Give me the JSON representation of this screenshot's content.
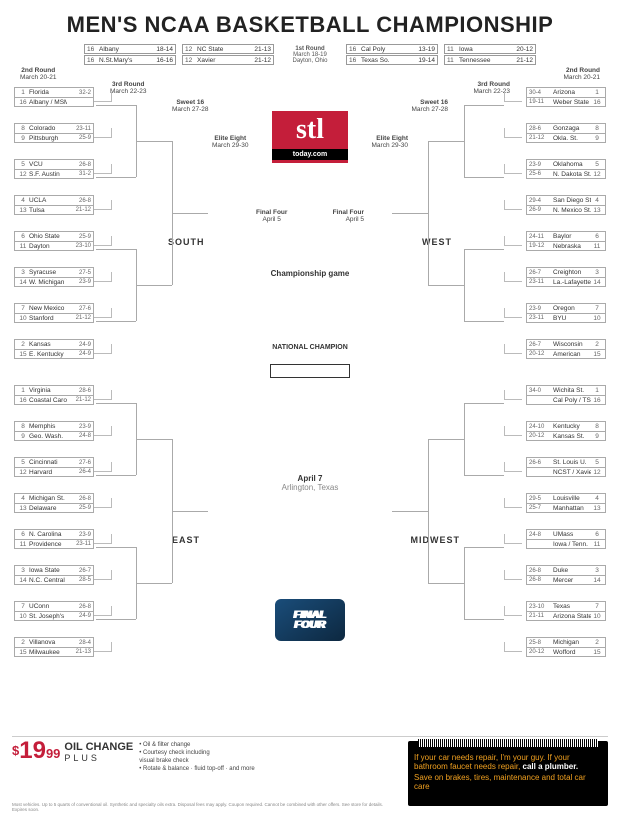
{
  "title": "MEN'S NCAA BASKETBALL CHAMPIONSHIP",
  "colors": {
    "accent": "#C41E3A",
    "line": "#aaa",
    "text": "#333"
  },
  "play_in": {
    "label": "1st Round",
    "dates": "March 18-19",
    "city": "Dayton, Ohio",
    "groups": [
      [
        [
          "16",
          "Albany",
          "18-14"
        ],
        [
          "16",
          "N.St.Mary's",
          "16-16"
        ]
      ],
      [
        [
          "12",
          "NC State",
          "21-13"
        ],
        [
          "12",
          "Xavier",
          "21-12"
        ]
      ],
      [
        [
          "16",
          "Cal Poly",
          "13-19"
        ],
        [
          "16",
          "Texas So.",
          "19-14"
        ]
      ],
      [
        [
          "11",
          "Iowa",
          "20-12"
        ],
        [
          "11",
          "Tennessee",
          "21-12"
        ]
      ]
    ]
  },
  "rounds": {
    "r2": {
      "label": "2nd Round",
      "dates": "March 20-21"
    },
    "r3": {
      "label": "3rd Round",
      "dates": "March 22-23"
    },
    "s16": {
      "label": "Sweet 16",
      "dates": "March 27-28"
    },
    "e8": {
      "label": "Elite Eight",
      "dates": "March 29-30"
    },
    "ff": {
      "label": "Final Four",
      "dates": "April 5"
    }
  },
  "center": {
    "logo_top": "stl",
    "logo_bottom": "today.com",
    "championship": "Championship game",
    "national": "NATIONAL CHAMPION",
    "date": "April 7",
    "city": "Arlington, Texas",
    "ff_logo": "FINAL FOUR"
  },
  "regions": {
    "south": {
      "label": "SOUTH",
      "pos": "tl",
      "teams": [
        [
          "1",
          "Florida",
          "32-2"
        ],
        [
          "16",
          "Albany / MSM",
          ""
        ],
        [
          "8",
          "Colorado",
          "23-11"
        ],
        [
          "9",
          "Pittsburgh",
          "25-9"
        ],
        [
          "5",
          "VCU",
          "26-8"
        ],
        [
          "12",
          "S.F. Austin",
          "31-2"
        ],
        [
          "4",
          "UCLA",
          "26-8"
        ],
        [
          "13",
          "Tulsa",
          "21-12"
        ],
        [
          "6",
          "Ohio State",
          "25-9"
        ],
        [
          "11",
          "Dayton",
          "23-10"
        ],
        [
          "3",
          "Syracuse",
          "27-5"
        ],
        [
          "14",
          "W. Michigan",
          "23-9"
        ],
        [
          "7",
          "New Mexico",
          "27-6"
        ],
        [
          "10",
          "Stanford",
          "21-12"
        ],
        [
          "2",
          "Kansas",
          "24-9"
        ],
        [
          "15",
          "E. Kentucky",
          "24-9"
        ]
      ]
    },
    "east": {
      "label": "EAST",
      "pos": "bl",
      "teams": [
        [
          "1",
          "Virginia",
          "28-6"
        ],
        [
          "16",
          "Coastal Caro.",
          "21-12"
        ],
        [
          "8",
          "Memphis",
          "23-9"
        ],
        [
          "9",
          "Geo. Wash.",
          "24-8"
        ],
        [
          "5",
          "Cincinnati",
          "27-6"
        ],
        [
          "12",
          "Harvard",
          "26-4"
        ],
        [
          "4",
          "Michigan St.",
          "26-8"
        ],
        [
          "13",
          "Delaware",
          "25-9"
        ],
        [
          "6",
          "N. Carolina",
          "23-9"
        ],
        [
          "11",
          "Providence",
          "23-11"
        ],
        [
          "3",
          "Iowa State",
          "26-7"
        ],
        [
          "14",
          "N.C. Central",
          "28-5"
        ],
        [
          "7",
          "UConn",
          "26-8"
        ],
        [
          "10",
          "St. Joseph's",
          "24-9"
        ],
        [
          "2",
          "Villanova",
          "28-4"
        ],
        [
          "15",
          "Milwaukee",
          "21-13"
        ]
      ]
    },
    "west": {
      "label": "WEST",
      "pos": "tr",
      "teams": [
        [
          "1",
          "Arizona",
          "30-4"
        ],
        [
          "16",
          "Weber State",
          "19-11"
        ],
        [
          "8",
          "Gonzaga",
          "28-6"
        ],
        [
          "9",
          "Okla. St.",
          "21-12"
        ],
        [
          "5",
          "Oklahoma",
          "23-9"
        ],
        [
          "12",
          "N. Dakota St.",
          "25-6"
        ],
        [
          "4",
          "San Diego St.",
          "29-4"
        ],
        [
          "13",
          "N. Mexico St.",
          "26-9"
        ],
        [
          "6",
          "Baylor",
          "24-11"
        ],
        [
          "11",
          "Nebraska",
          "19-12"
        ],
        [
          "3",
          "Creighton",
          "26-7"
        ],
        [
          "14",
          "La.-Lafayette",
          "23-11"
        ],
        [
          "7",
          "Oregon",
          "23-9"
        ],
        [
          "10",
          "BYU",
          "23-11"
        ],
        [
          "2",
          "Wisconsin",
          "26-7"
        ],
        [
          "15",
          "American",
          "20-12"
        ]
      ]
    },
    "midwest": {
      "label": "MIDWEST",
      "pos": "br",
      "teams": [
        [
          "1",
          "Wichita St.",
          "34-0"
        ],
        [
          "16",
          "Cal Poly / TSU",
          ""
        ],
        [
          "8",
          "Kentucky",
          "24-10"
        ],
        [
          "9",
          "Kansas St.",
          "20-12"
        ],
        [
          "5",
          "St. Louis U.",
          "26-6"
        ],
        [
          "12",
          "NCST / Xavier",
          ""
        ],
        [
          "4",
          "Louisville",
          "29-5"
        ],
        [
          "13",
          "Manhattan",
          "25-7"
        ],
        [
          "6",
          "UMass",
          "24-8"
        ],
        [
          "11",
          "Iowa / Tenn.",
          ""
        ],
        [
          "3",
          "Duke",
          "26-8"
        ],
        [
          "14",
          "Mercer",
          "26-8"
        ],
        [
          "7",
          "Texas",
          "23-10"
        ],
        [
          "10",
          "Arizona State",
          "21-11"
        ],
        [
          "2",
          "Michigan",
          "25-8"
        ],
        [
          "15",
          "Wofford",
          "20-12"
        ]
      ]
    }
  },
  "ad": {
    "price": "19",
    "cents": "99",
    "dollar": "$",
    "oilchange": "OIL CHANGE",
    "plus": "PLUS",
    "bullets": [
      "• Oil & filter change",
      "• Courtesy check including",
      "  visual brake check",
      "• Rotate & balance · fluid top-off · and more"
    ],
    "fineprint": "Most vehicles. Up to 5 quarts of conventional oil. Synthetic and specialty oils extra. Disposal fees may apply. Coupon required. Cannot be combined with other offers. See store for details. Expires soon.",
    "dark_line1": "If your car needs repair, I'm your guy. If your bathroom faucet needs repair,",
    "dark_line2": "call a plumber.",
    "dark_line3": "Save on brakes, tires, maintenance and total car care"
  }
}
